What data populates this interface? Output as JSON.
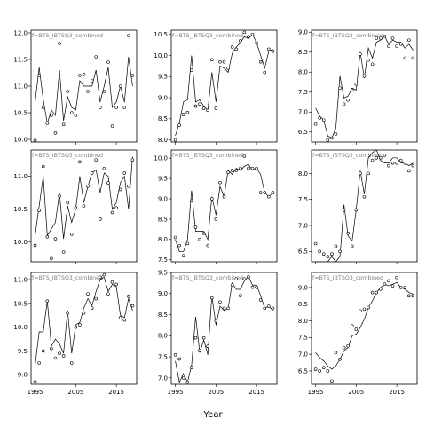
{
  "chart_data": {
    "type": "scatter",
    "layout": {
      "rows": 3,
      "cols": 3
    },
    "xlabel": "Year",
    "xlim": [
      1994,
      2020
    ],
    "xticks": [
      1995,
      2005,
      2015
    ],
    "panels": [
      {
        "label": "f=BTS_IBTSQ3_combined",
        "ylim": [
          9.95,
          12.05
        ],
        "yticks": [
          10.0,
          10.5,
          11.0,
          11.5,
          12.0
        ],
        "x": [
          1995,
          1996,
          1997,
          1998,
          1999,
          2000,
          2001,
          2002,
          2003,
          2004,
          2005,
          2006,
          2007,
          2008,
          2009,
          2010,
          2011,
          2012,
          2013,
          2014,
          2015,
          2016,
          2017,
          2018,
          2019
        ],
        "points": [
          9.98,
          11.2,
          10.6,
          10.3,
          10.45,
          10.12,
          11.8,
          10.28,
          10.9,
          10.5,
          10.45,
          11.2,
          11.22,
          10.9,
          11.1,
          11.55,
          10.6,
          10.9,
          11.45,
          10.25,
          10.6,
          11.0,
          10.6,
          11.95,
          11.2
        ],
        "line": [
          10.7,
          11.35,
          10.75,
          10.3,
          10.55,
          10.45,
          11.3,
          10.35,
          10.8,
          10.6,
          10.55,
          11.1,
          11.0,
          11.0,
          11.0,
          11.3,
          10.7,
          11.0,
          11.35,
          10.6,
          10.7,
          11.0,
          10.7,
          11.55,
          11.0
        ]
      },
      {
        "label": "f=BTS_IBTSQ3_combined",
        "ylim": [
          7.95,
          10.6
        ],
        "yticks": [
          8.0,
          8.5,
          9.0,
          9.5,
          10.0,
          10.5
        ],
        "x": [
          1995,
          1996,
          1997,
          1998,
          1999,
          2000,
          2001,
          2002,
          2003,
          2004,
          2005,
          2006,
          2007,
          2008,
          2009,
          2010,
          2011,
          2012,
          2013,
          2014,
          2015,
          2016,
          2017,
          2018,
          2019
        ],
        "points": [
          8.0,
          8.35,
          8.6,
          8.65,
          9.65,
          8.8,
          8.85,
          8.75,
          8.7,
          9.9,
          8.75,
          9.85,
          9.85,
          9.7,
          10.2,
          10.15,
          10.35,
          10.55,
          10.45,
          10.5,
          10.3,
          9.85,
          9.6,
          10.15,
          10.1
        ],
        "line": [
          8.1,
          8.4,
          8.9,
          8.95,
          10.0,
          8.9,
          8.95,
          8.8,
          8.7,
          9.6,
          8.9,
          9.75,
          9.7,
          9.6,
          10.05,
          10.2,
          10.3,
          10.45,
          10.4,
          10.5,
          10.3,
          10.0,
          9.7,
          10.1,
          10.15
        ]
      },
      {
        "label": "f=BTS_IBTSQ3_combined",
        "ylim": [
          6.25,
          9.05
        ],
        "yticks": [
          6.5,
          7.0,
          7.5,
          8.0,
          8.5,
          9.0
        ],
        "x": [
          1995,
          1996,
          1997,
          1998,
          1999,
          2000,
          2001,
          2002,
          2003,
          2004,
          2005,
          2006,
          2007,
          2008,
          2009,
          2010,
          2011,
          2012,
          2013,
          2014,
          2015,
          2016,
          2017,
          2018,
          2019
        ],
        "points": [
          6.7,
          6.85,
          6.8,
          6.3,
          6.35,
          6.45,
          7.6,
          7.2,
          7.3,
          7.55,
          7.7,
          8.45,
          7.9,
          8.3,
          8.2,
          8.85,
          8.85,
          8.9,
          8.65,
          8.85,
          8.65,
          8.7,
          8.35,
          8.8,
          8.35
        ],
        "line": [
          7.1,
          6.9,
          6.8,
          6.4,
          6.35,
          6.6,
          7.9,
          7.35,
          7.4,
          7.6,
          7.55,
          8.5,
          7.85,
          8.6,
          8.35,
          8.75,
          8.8,
          8.9,
          8.7,
          8.8,
          8.75,
          8.75,
          8.6,
          8.7,
          8.55
        ]
      },
      {
        "label": "f=BTS_IBTSQ3_combined",
        "ylim": [
          9.7,
          11.4
        ],
        "yticks": [
          10.0,
          10.5,
          11.0
        ],
        "x": [
          1995,
          1996,
          1997,
          1998,
          1999,
          2000,
          2001,
          2002,
          2003,
          2004,
          2005,
          2006,
          2007,
          2008,
          2009,
          2010,
          2011,
          2012,
          2013,
          2014,
          2015,
          2016,
          2017,
          2018,
          2019
        ],
        "points": [
          9.95,
          10.48,
          11.15,
          10.08,
          9.75,
          10.05,
          10.7,
          9.85,
          10.6,
          10.12,
          10.52,
          11.22,
          10.55,
          10.85,
          11.05,
          11.25,
          10.35,
          11.12,
          10.9,
          10.45,
          10.52,
          10.8,
          11.05,
          10.85,
          11.25
        ],
        "line": [
          10.1,
          10.55,
          11.0,
          10.1,
          10.2,
          10.3,
          10.75,
          10.05,
          10.55,
          10.3,
          10.5,
          11.0,
          10.6,
          10.85,
          11.05,
          11.1,
          10.75,
          11.05,
          11.0,
          10.5,
          10.6,
          10.9,
          11.0,
          10.5,
          11.3
        ]
      },
      {
        "label": "f=BTS_IBTSQ3_combined",
        "ylim": [
          7.45,
          10.2
        ],
        "yticks": [
          7.5,
          8.0,
          8.5,
          9.0,
          9.5,
          10.0
        ],
        "x": [
          1995,
          1996,
          1997,
          1998,
          1999,
          2000,
          2001,
          2002,
          2003,
          2004,
          2005,
          2006,
          2007,
          2008,
          2009,
          2010,
          2011,
          2012,
          2013,
          2014,
          2015,
          2016,
          2017,
          2018,
          2019
        ],
        "points": [
          8.05,
          7.85,
          7.6,
          7.9,
          8.95,
          8.3,
          8.0,
          8.15,
          7.85,
          9.0,
          8.5,
          9.4,
          9.05,
          9.65,
          9.7,
          9.7,
          9.75,
          10.05,
          9.75,
          9.75,
          9.75,
          9.15,
          9.15,
          9.05,
          9.15
        ],
        "line": [
          8.0,
          7.7,
          7.7,
          8.0,
          9.2,
          8.2,
          8.2,
          8.2,
          8.0,
          9.05,
          8.6,
          9.3,
          9.05,
          9.7,
          9.6,
          9.75,
          9.7,
          9.8,
          9.85,
          9.7,
          9.75,
          9.6,
          9.15,
          9.05,
          9.15
        ]
      },
      {
        "label": "f=BTS_IBTSQ3_combined",
        "ylim": [
          6.3,
          8.45
        ],
        "yticks": [
          6.5,
          7.0,
          7.5,
          8.0
        ],
        "x": [
          1995,
          1996,
          1997,
          1998,
          1999,
          2000,
          2001,
          2002,
          2003,
          2004,
          2005,
          2006,
          2007,
          2008,
          2009,
          2010,
          2011,
          2012,
          2013,
          2014,
          2015,
          2016,
          2017,
          2018,
          2019
        ],
        "points": [
          6.65,
          6.5,
          6.45,
          6.4,
          6.45,
          6.6,
          6.5,
          7.3,
          6.85,
          6.6,
          7.3,
          8.0,
          7.55,
          8.0,
          8.25,
          8.3,
          8.3,
          8.35,
          8.15,
          8.2,
          8.2,
          8.25,
          8.2,
          8.05,
          8.15
        ],
        "line": [
          6.3,
          6.3,
          6.3,
          6.3,
          6.4,
          6.3,
          6.4,
          7.4,
          6.8,
          6.7,
          7.3,
          8.05,
          7.6,
          8.3,
          8.4,
          8.45,
          8.25,
          8.2,
          8.2,
          8.3,
          8.3,
          8.2,
          8.2,
          8.15,
          8.2
        ]
      },
      {
        "label": "f=BTS_IBTSQ3_combined",
        "ylim": [
          8.8,
          11.15
        ],
        "yticks": [
          9.0,
          9.5,
          10.0,
          10.5,
          11.0
        ],
        "x": [
          1995,
          1996,
          1997,
          1998,
          1999,
          2000,
          2001,
          2002,
          2003,
          2004,
          2005,
          2006,
          2007,
          2008,
          2009,
          2010,
          2011,
          2012,
          2013,
          2014,
          2015,
          2016,
          2017,
          2018,
          2019
        ],
        "points": [
          8.85,
          9.25,
          9.5,
          10.55,
          9.55,
          9.35,
          9.45,
          9.4,
          10.3,
          9.25,
          10.0,
          10.05,
          10.3,
          10.7,
          10.4,
          10.6,
          11.05,
          11.1,
          10.7,
          10.95,
          10.9,
          10.2,
          10.15,
          10.65,
          10.45
        ],
        "line": [
          9.2,
          9.9,
          9.9,
          10.55,
          9.6,
          9.75,
          9.65,
          9.45,
          10.35,
          9.45,
          10.05,
          10.1,
          10.4,
          10.6,
          10.45,
          10.75,
          11.0,
          11.05,
          10.75,
          10.9,
          10.85,
          10.25,
          10.2,
          10.6,
          10.35
        ]
      },
      {
        "label": "f=BTS_IBTSQ3_combined",
        "ylim": [
          6.85,
          9.5
        ],
        "yticks": [
          7.0,
          7.5,
          8.0,
          8.5,
          9.0,
          9.5
        ],
        "x": [
          1995,
          1996,
          1997,
          1998,
          1999,
          2000,
          2001,
          2002,
          2003,
          2004,
          2005,
          2006,
          2007,
          2008,
          2009,
          2010,
          2011,
          2012,
          2013,
          2014,
          2015,
          2016,
          2017,
          2018,
          2019
        ],
        "points": [
          7.55,
          7.45,
          7.0,
          6.9,
          7.25,
          7.95,
          7.65,
          7.95,
          7.75,
          8.9,
          8.35,
          8.8,
          8.65,
          8.65,
          9.2,
          9.35,
          8.95,
          9.35,
          9.4,
          9.15,
          9.15,
          8.85,
          8.65,
          8.7,
          8.65
        ],
        "line": [
          7.4,
          6.9,
          7.1,
          6.9,
          7.3,
          8.45,
          7.6,
          7.9,
          7.55,
          8.95,
          8.25,
          8.7,
          8.6,
          8.65,
          9.25,
          9.1,
          9.1,
          9.3,
          9.4,
          9.2,
          9.2,
          8.95,
          8.65,
          8.7,
          8.6
        ]
      },
      {
        "label": "f=BTS_IBTSQ3_combined",
        "ylim": [
          6.1,
          9.45
        ],
        "yticks": [
          6.5,
          7.0,
          7.5,
          8.0,
          8.5,
          9.0
        ],
        "x": [
          1995,
          1996,
          1997,
          1998,
          1999,
          2000,
          2001,
          2002,
          2003,
          2004,
          2005,
          2006,
          2007,
          2008,
          2009,
          2010,
          2011,
          2012,
          2013,
          2014,
          2015,
          2016,
          2017,
          2018,
          2019
        ],
        "points": [
          6.55,
          6.5,
          6.6,
          6.5,
          6.2,
          7.05,
          6.85,
          7.2,
          7.25,
          7.85,
          7.75,
          8.3,
          8.35,
          8.4,
          8.85,
          8.85,
          8.95,
          9.1,
          9.2,
          9.05,
          9.3,
          9.0,
          9.0,
          8.75,
          8.75
        ],
        "line": [
          7.05,
          6.9,
          6.8,
          6.65,
          6.55,
          6.65,
          6.85,
          7.1,
          7.2,
          7.55,
          7.6,
          7.8,
          8.05,
          8.4,
          8.6,
          8.85,
          9.0,
          9.1,
          9.05,
          9.1,
          9.15,
          9.0,
          8.95,
          8.85,
          8.8
        ]
      }
    ]
  }
}
